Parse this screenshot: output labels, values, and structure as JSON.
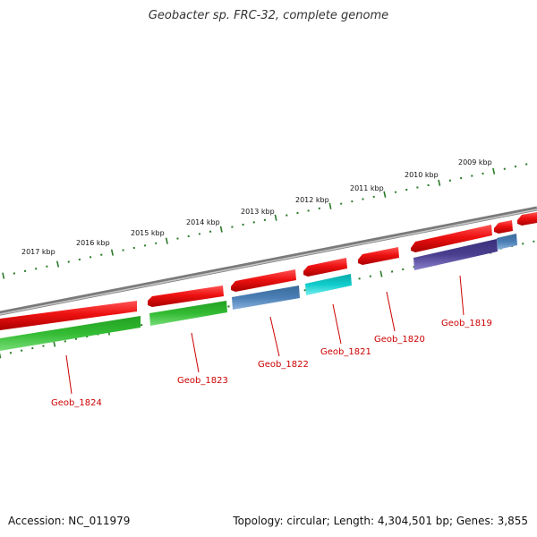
{
  "title": "Geobacter sp. FRC-32, complete genome",
  "footer": {
    "accession": "Accession: NC_011979",
    "summary": "Topology: circular; Length: 4,304,501 bp; Genes: 3,855"
  },
  "colors": {
    "backbone": "#7a7a7a",
    "ticks": "#2a7a2a",
    "gene_red": "#ee1111",
    "gene_green": "#33bb33",
    "gene_steelblue": "#4a7eb5",
    "gene_cyan": "#11cccc",
    "gene_indigo": "#4a3f8f",
    "label": "#cc0000"
  },
  "kbp_labels": [
    "2017 kbp",
    "2016 kbp",
    "2015 kbp",
    "2014 kbp",
    "2013 kbp",
    "2012 kbp",
    "2011 kbp",
    "2010 kbp",
    "2009 kbp"
  ],
  "gene_labels": [
    "Geob_1824",
    "Geob_1823",
    "Geob_1822",
    "Geob_1821",
    "Geob_1820",
    "Geob_1819"
  ]
}
